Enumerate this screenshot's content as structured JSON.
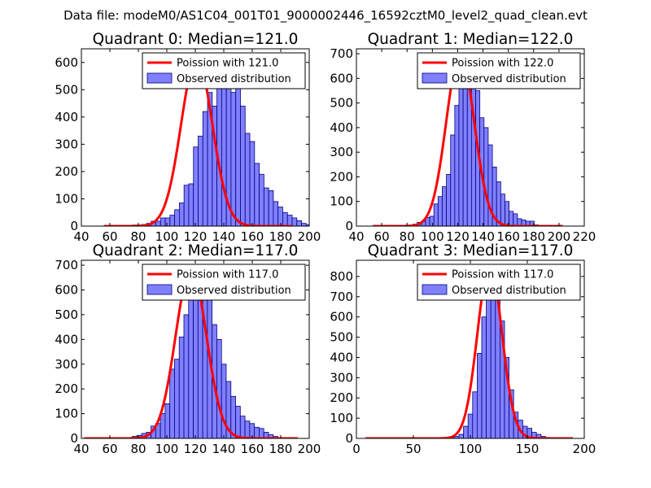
{
  "suptitle": "Data file: modeM0/AS1C04_001T01_9000002446_16592cztM0_level2_quad_clean.evt",
  "colors": {
    "hist_fill": "#8080ff",
    "hist_edge": "#000080",
    "poisson_line": "#ff0000",
    "axes": "#000000",
    "background": "#ffffff"
  },
  "chart_data": [
    {
      "type": "bar",
      "title": "Quadrant 0: Median=121.0",
      "legend_position": "top-right",
      "xlim": [
        40,
        200
      ],
      "ylim": [
        0,
        650
      ],
      "xticks": [
        40,
        60,
        80,
        100,
        120,
        140,
        160,
        180,
        200
      ],
      "yticks": [
        0,
        100,
        200,
        300,
        400,
        500,
        600
      ],
      "bins": {
        "start": 56,
        "width": 3.3,
        "counts": [
          2,
          0,
          1,
          1,
          2,
          1,
          4,
          4,
          6,
          10,
          18,
          18,
          30,
          30,
          40,
          60,
          85,
          150,
          155,
          290,
          330,
          420,
          490,
          440,
          620,
          540,
          590,
          490,
          540,
          440,
          340,
          310,
          230,
          190,
          140,
          130,
          90,
          70,
          50,
          40,
          30,
          20,
          10,
          5,
          2,
          1
        ]
      },
      "series": [
        {
          "name": "Poission with 121.0",
          "kind": "poisson",
          "mean": 121.0,
          "x_range": [
            56,
            188
          ],
          "peak": 615
        },
        {
          "name": "Observed distribution",
          "kind": "histogram"
        }
      ]
    },
    {
      "type": "bar",
      "title": "Quadrant 1: Median=122.0",
      "legend_position": "top-right",
      "xlim": [
        40,
        220
      ],
      "ylim": [
        0,
        720
      ],
      "xticks": [
        40,
        60,
        80,
        100,
        120,
        140,
        160,
        180,
        200,
        220
      ],
      "yticks": [
        0,
        100,
        200,
        300,
        400,
        500,
        600,
        700
      ],
      "bins": {
        "start": 55,
        "width": 3.3,
        "counts": [
          1,
          0,
          1,
          0,
          1,
          1,
          2,
          3,
          5,
          8,
          15,
          20,
          35,
          40,
          90,
          120,
          160,
          210,
          370,
          490,
          560,
          650,
          700,
          580,
          550,
          440,
          400,
          330,
          240,
          180,
          130,
          100,
          60,
          50,
          30,
          25,
          20,
          20,
          5,
          3,
          2,
          1
        ]
      },
      "series": [
        {
          "name": "Poission with 122.0",
          "kind": "poisson",
          "mean": 122.0,
          "x_range": [
            53,
            203
          ],
          "peak": 700
        },
        {
          "name": "Observed distribution",
          "kind": "histogram"
        }
      ]
    },
    {
      "type": "bar",
      "title": "Quadrant 2: Median=117.0",
      "legend_position": "top-right",
      "xlim": [
        40,
        200
      ],
      "ylim": [
        0,
        720
      ],
      "xticks": [
        40,
        60,
        80,
        100,
        120,
        140,
        160,
        180,
        200
      ],
      "yticks": [
        0,
        100,
        200,
        300,
        400,
        500,
        600,
        700
      ],
      "bins": {
        "start": 46,
        "width": 3.3,
        "counts": [
          0,
          0,
          0,
          1,
          0,
          1,
          1,
          2,
          3,
          8,
          12,
          20,
          25,
          50,
          60,
          100,
          140,
          280,
          320,
          410,
          500,
          560,
          600,
          680,
          640,
          590,
          460,
          400,
          300,
          230,
          170,
          130,
          90,
          70,
          60,
          45,
          40,
          25,
          15,
          8,
          2
        ]
      },
      "series": [
        {
          "name": "Poission with 117.0",
          "kind": "poisson",
          "mean": 117.0,
          "x_range": [
            42,
            192
          ],
          "peak": 685
        },
        {
          "name": "Observed distribution",
          "kind": "histogram"
        }
      ]
    },
    {
      "type": "bar",
      "title": "Quadrant 3: Median=117.0",
      "legend_position": "top-right",
      "xlim": [
        0,
        200
      ],
      "ylim": [
        0,
        880
      ],
      "xticks": [
        0,
        50,
        100,
        150,
        200
      ],
      "yticks": [
        0,
        100,
        200,
        300,
        400,
        500,
        600,
        700,
        800
      ],
      "bins": {
        "start": 70,
        "width": 4.0,
        "counts": [
          1,
          2,
          3,
          5,
          10,
          20,
          60,
          120,
          230,
          420,
          600,
          740,
          850,
          700,
          580,
          400,
          240,
          130,
          90,
          60,
          50,
          30,
          20,
          10,
          5,
          2
        ]
      },
      "series": [
        {
          "name": "Poission with 117.0",
          "kind": "poisson",
          "mean": 117.0,
          "x_range": [
            8,
            190
          ],
          "peak": 855
        },
        {
          "name": "Observed distribution",
          "kind": "histogram"
        }
      ]
    }
  ]
}
